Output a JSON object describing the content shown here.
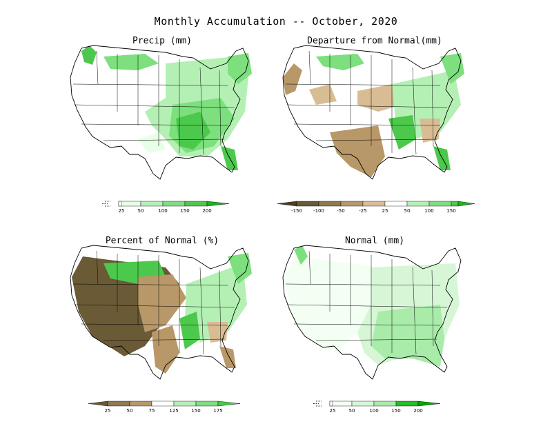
{
  "title": "Monthly Accumulation -- October, 2020",
  "colors": {
    "green_1": "#e6ffe6",
    "green_2": "#b4f0b4",
    "green_3": "#7ddf7d",
    "green_4": "#4cc94c",
    "green_5": "#22b022",
    "brown_1": "#d8bd94",
    "brown_2": "#b89868",
    "brown_3": "#8f7a4e",
    "brown_4": "#6a5a36",
    "normal_1": "#f2fff2",
    "normal_2": "#d6f6d6",
    "normal_3": "#a9eba9"
  },
  "panels": {
    "precip": {
      "title": "Precip (mm)",
      "legend_ticks": [
        "25",
        "50",
        "100",
        "150",
        "200"
      ]
    },
    "departure": {
      "title": "Departure from Normal(mm)",
      "legend_ticks": [
        "-150",
        "-100",
        "-50",
        "-25",
        "25",
        "50",
        "100",
        "150"
      ]
    },
    "percent": {
      "title": "Percent of Normal (%)",
      "legend_ticks": [
        "25",
        "50",
        "75",
        "125",
        "150",
        "175"
      ]
    },
    "normal": {
      "title": "Normal (mm)",
      "legend_ticks": [
        "25",
        "50",
        "100",
        "150",
        "200"
      ]
    }
  }
}
